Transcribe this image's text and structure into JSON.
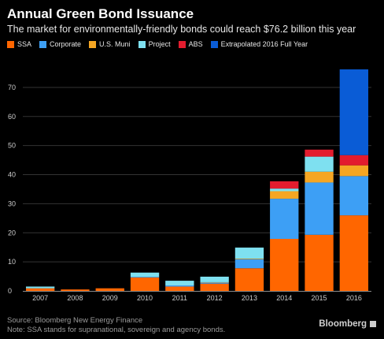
{
  "chart_data": {
    "type": "bar",
    "stacked": true,
    "title": "Annual Green Bond Issuance",
    "subtitle": "The market for environmentally-friendly bonds could reach $76.2 billion this year",
    "categories": [
      "2007",
      "2008",
      "2009",
      "2010",
      "2011",
      "2012",
      "2013",
      "2014",
      "2015",
      "2016"
    ],
    "series": [
      {
        "name": "SSA",
        "color": "#ff6600",
        "values": [
          0.9,
          0.5,
          0.9,
          4.6,
          1.5,
          2.5,
          7.8,
          17.9,
          19.3,
          26.0
        ]
      },
      {
        "name": "Corporate",
        "color": "#3d9ff5",
        "values": [
          0,
          0,
          0,
          0.2,
          0.4,
          0.4,
          3.1,
          13.8,
          18.0,
          13.5
        ]
      },
      {
        "name": "U.S. Muni",
        "color": "#f5a623",
        "values": [
          0,
          0,
          0,
          0,
          0,
          0.1,
          0.2,
          2.6,
          3.7,
          3.7
        ]
      },
      {
        "name": "Project",
        "color": "#7ee0f0",
        "values": [
          0.6,
          0,
          0,
          1.5,
          1.6,
          1.9,
          3.8,
          0.9,
          5.2,
          0
        ]
      },
      {
        "name": "ABS",
        "color": "#e31c2e",
        "values": [
          0,
          0,
          0,
          0,
          0,
          0,
          0,
          2.5,
          2.4,
          3.5
        ]
      },
      {
        "name": "Extrapolated 2016 Full Year",
        "color": "#0a5cd6",
        "values": [
          0,
          0,
          0,
          0,
          0,
          0,
          0,
          0,
          0,
          29.5
        ]
      }
    ],
    "ylim": [
      0,
      80
    ],
    "yticks": [
      0,
      10,
      20,
      30,
      40,
      50,
      60,
      70
    ],
    "xlabel": "",
    "ylabel": "",
    "grid": true,
    "legend_position": "top",
    "source": "Source: Bloomberg New Energy Finance",
    "note": "Note: SSA stands for supranational, sovereign and agency bonds.",
    "brand": "Bloomberg"
  }
}
